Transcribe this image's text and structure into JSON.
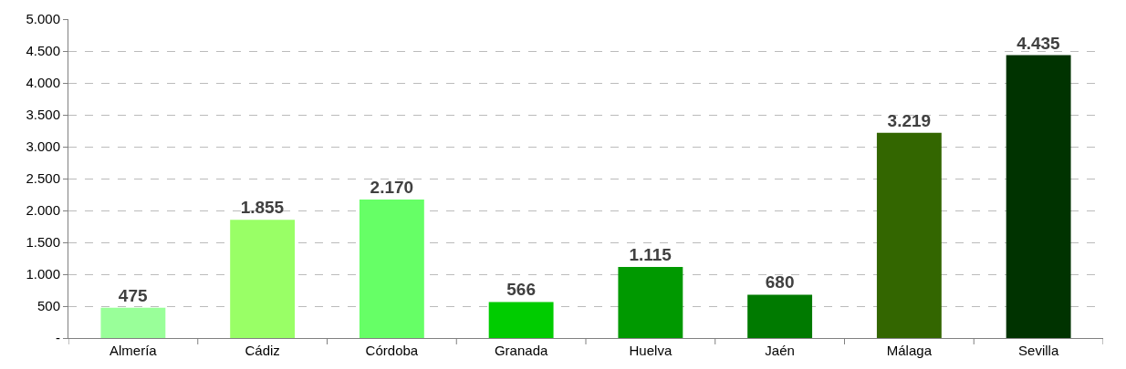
{
  "chart_data": {
    "type": "bar",
    "categories": [
      "Almería",
      "Cádiz",
      "Córdoba",
      "Granada",
      "Huelva",
      "Jaén",
      "Málaga",
      "Sevilla"
    ],
    "values": [
      475,
      1855,
      2170,
      566,
      1115,
      680,
      3219,
      4435
    ],
    "colors": [
      "#99ff99",
      "#99ff66",
      "#66ff66",
      "#00cc00",
      "#009900",
      "#007a00",
      "#336600",
      "#003300"
    ],
    "value_labels": [
      "475",
      "1.855",
      "2.170",
      "566",
      "1.115",
      "680",
      "3.219",
      "4.435"
    ],
    "ylim": [
      0,
      5000
    ],
    "yticks": [
      {
        "value": 0,
        "label": "-"
      },
      500,
      {
        "value": 1000,
        "label": "1.000"
      },
      {
        "value": 1500,
        "label": "1.500"
      },
      {
        "value": 2000,
        "label": "2.000"
      },
      {
        "value": 2500,
        "label": "2.500"
      },
      {
        "value": 3000,
        "label": "3.000"
      },
      {
        "value": 3500,
        "label": "3.500"
      },
      {
        "value": 4000,
        "label": "4.000"
      },
      {
        "value": 4500,
        "label": "4.500"
      },
      {
        "value": 5000,
        "label": "5.000"
      }
    ],
    "grid": "y"
  }
}
